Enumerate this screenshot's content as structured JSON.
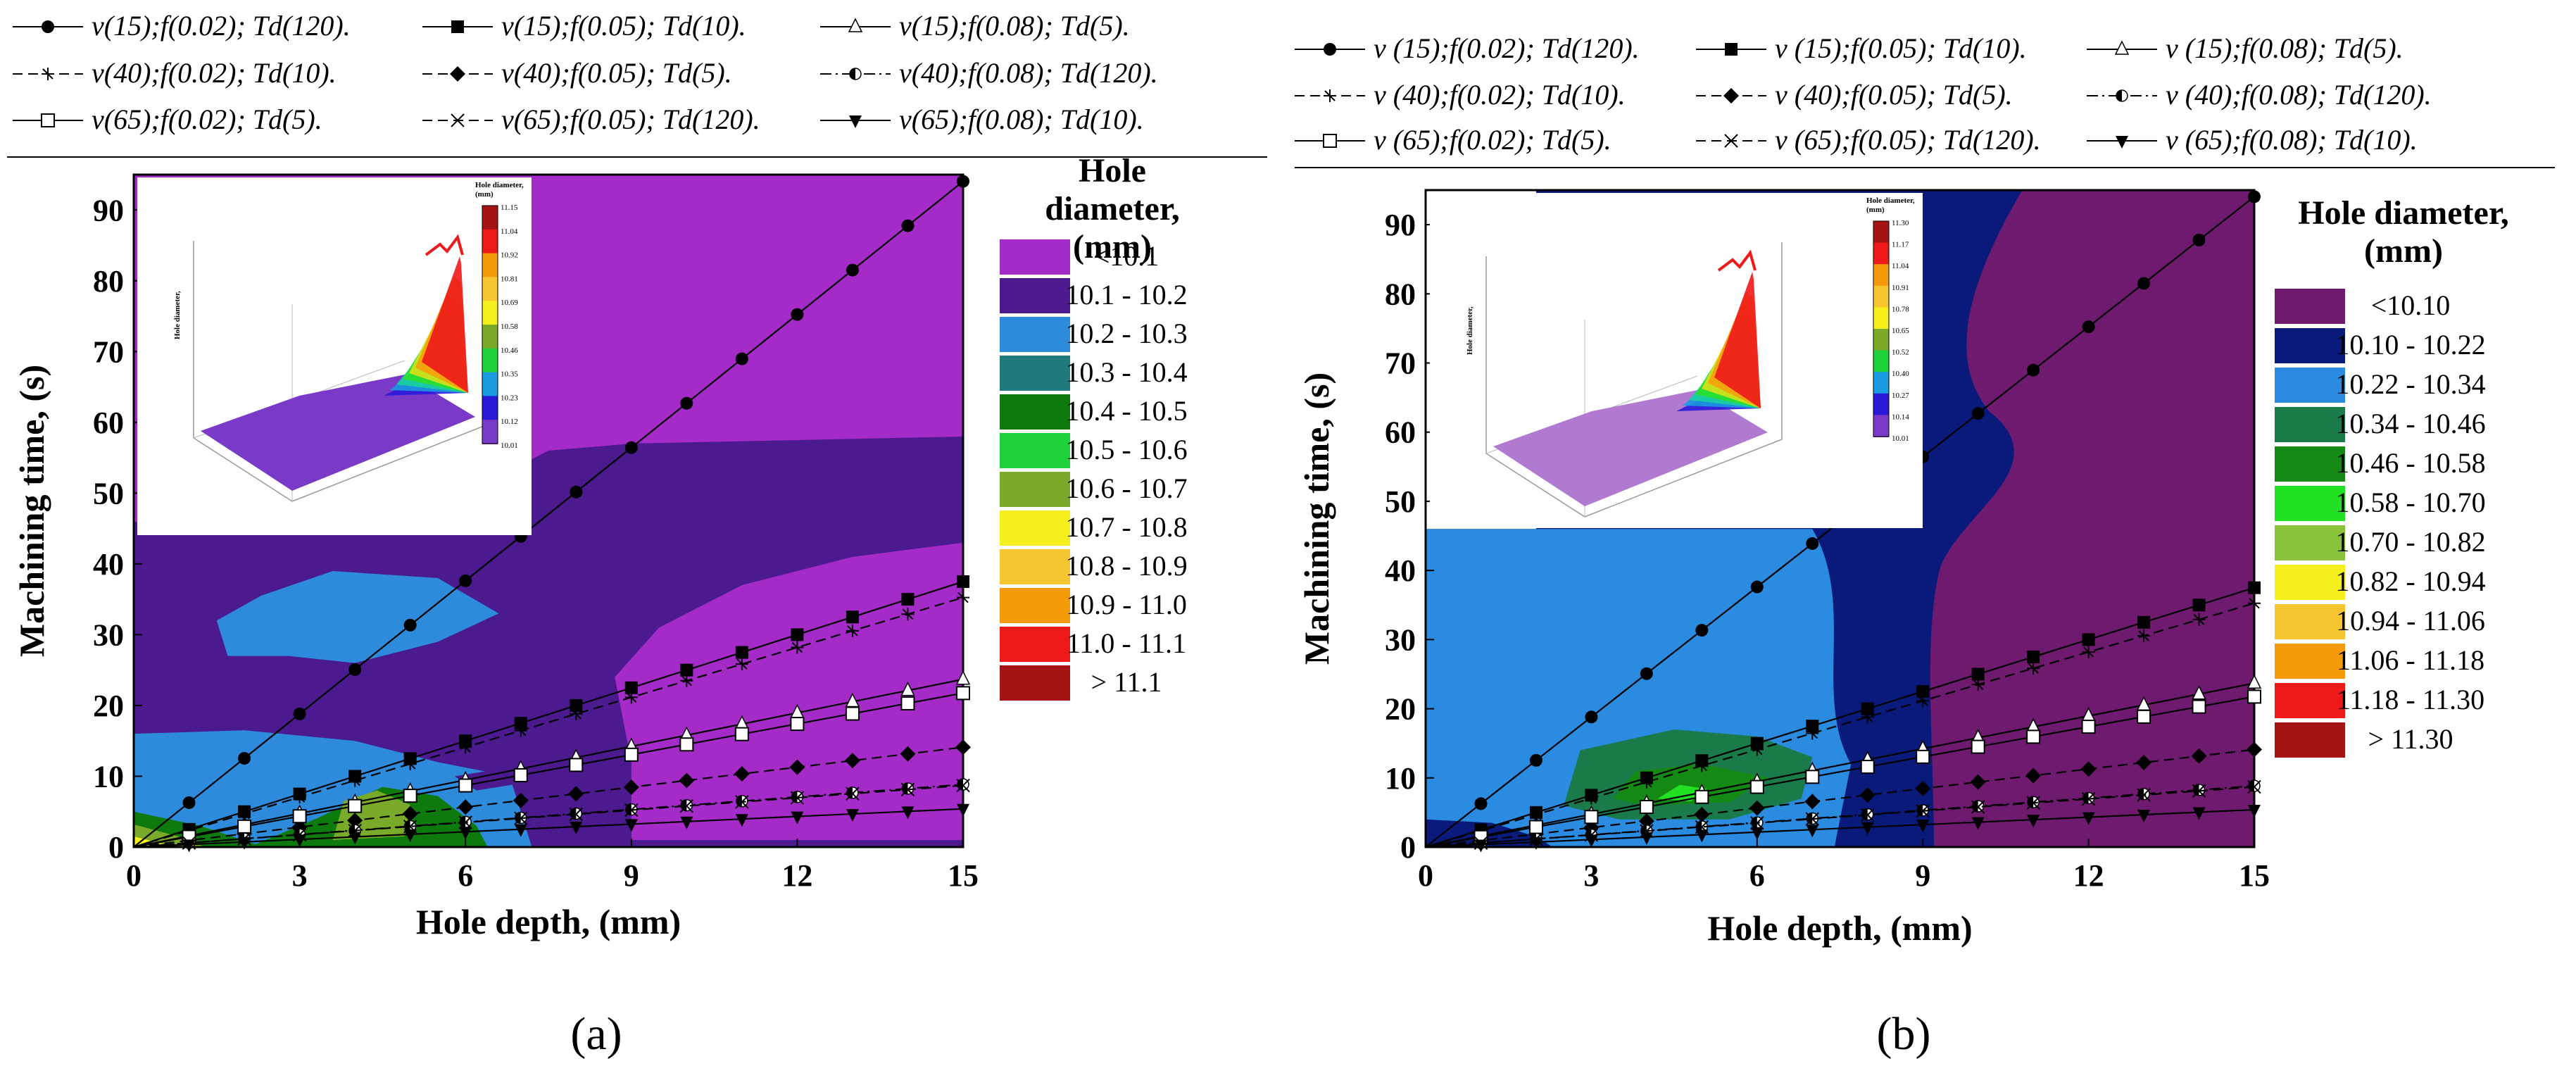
{
  "series": [
    {
      "label": "v(15);f(0.02); Td(120).",
      "label_b": "v (15);f(0.02); Td(120).",
      "marker": "circle",
      "dash": "solid",
      "slope_a": 6.27,
      "slope_b": 6.27
    },
    {
      "label": "v(15);f(0.05); Td(10).",
      "label_b": "v (15);f(0.05); Td(10).",
      "marker": "square",
      "dash": "solid",
      "slope_a": 2.5,
      "slope_b": 2.5
    },
    {
      "label": "v(15);f(0.08); Td(5).",
      "label_b": "v (15);f(0.08); Td(5).",
      "marker": "triangle",
      "dash": "solid",
      "slope_a": 1.58,
      "slope_b": 1.58
    },
    {
      "label": "v(40);f(0.02); Td(10).",
      "label_b": "v (40);f(0.02); Td(10).",
      "marker": "star",
      "dash": "dash",
      "slope_a": 2.35,
      "slope_b": 2.35
    },
    {
      "label": "v(40);f(0.05); Td(5).",
      "label_b": "v (40);f(0.05); Td(5).",
      "marker": "diamond",
      "dash": "dash",
      "slope_a": 0.94,
      "slope_b": 0.94
    },
    {
      "label": "v(40);f(0.08); Td(120).",
      "label_b": "v (40);f(0.08); Td(120).",
      "marker": "halfcircle",
      "dash": "dashdot",
      "slope_a": 0.59,
      "slope_b": 0.59
    },
    {
      "label": "v(65);f(0.02); Td(5).",
      "label_b": "v (65);f(0.02); Td(5).",
      "marker": "opensquare",
      "dash": "solid",
      "slope_a": 1.45,
      "slope_b": 1.45
    },
    {
      "label": "v(65);f(0.05); Td(120).",
      "label_b": "v (65);f(0.05); Td(120).",
      "marker": "cross",
      "dash": "dash",
      "slope_a": 0.58,
      "slope_b": 0.58
    },
    {
      "label": "v(65);f(0.08); Td(10).",
      "label_b": "v (65);f(0.08); Td(10).",
      "marker": "invtriangle",
      "dash": "solid",
      "slope_a": 0.36,
      "slope_b": 0.36
    }
  ],
  "chart_data": [
    {
      "id": "a",
      "type": "contour",
      "panel_label": "(a)",
      "xlabel": "Hole depth, (mm)",
      "ylabel": "Machining time, (s)",
      "xlim": [
        0,
        15
      ],
      "ylim": [
        0,
        95
      ],
      "xticks": [
        0,
        3,
        6,
        9,
        12,
        15
      ],
      "yticks": [
        0,
        10,
        20,
        30,
        40,
        50,
        60,
        70,
        80,
        90
      ],
      "x_points": [
        0,
        1,
        2,
        3,
        4,
        5,
        6,
        7,
        8,
        9,
        10,
        11,
        12,
        13,
        14,
        15
      ],
      "colorbar_title": [
        "Hole",
        "diameter,",
        "(mm)"
      ],
      "colorbar": [
        {
          "label": "<10.1",
          "color": "#a52bc8"
        },
        {
          "label": "10.1 - 10.2",
          "color": "#4b1a8e"
        },
        {
          "label": "10.2 - 10.3",
          "color": "#2e8bdc"
        },
        {
          "label": "10.3 - 10.4",
          "color": "#1f7a7a"
        },
        {
          "label": "10.4 - 10.5",
          "color": "#0e7a0e"
        },
        {
          "label": "10.5 - 10.6",
          "color": "#1fd23a"
        },
        {
          "label": "10.6 - 10.7",
          "color": "#7aaa2a"
        },
        {
          "label": "10.7 - 10.8",
          "color": "#f5ef1e"
        },
        {
          "label": "10.8 - 10.9",
          "color": "#f7c530"
        },
        {
          "label": "10.9 - 11.0",
          "color": "#f59a0a"
        },
        {
          "label": "11.0 - 11.1",
          "color": "#ee1a1a"
        },
        {
          "label": "> 11.1",
          "color": "#a51414"
        }
      ],
      "inset": {
        "title": [
          "Hole diameter,",
          "(mm)"
        ],
        "ticks": [
          "11.15",
          "11.04",
          "10.92",
          "10.81",
          "10.69",
          "10.58",
          "10.46",
          "10.35",
          "10.23",
          "10.12",
          "10.01"
        ]
      }
    },
    {
      "id": "b",
      "type": "contour",
      "panel_label": "(b)",
      "xlabel": "Hole depth, (mm)",
      "ylabel": "Machining time, (s)",
      "xlim": [
        0,
        15
      ],
      "ylim": [
        0,
        95
      ],
      "xticks": [
        0,
        3,
        6,
        9,
        12,
        15
      ],
      "yticks": [
        0,
        10,
        20,
        30,
        40,
        50,
        60,
        70,
        80,
        90
      ],
      "x_points": [
        0,
        1,
        2,
        3,
        4,
        5,
        6,
        7,
        8,
        9,
        10,
        11,
        12,
        13,
        14,
        15
      ],
      "colorbar_title": [
        "Hole diameter,",
        "(mm)"
      ],
      "colorbar": [
        {
          "label": "<10.10",
          "color": "#6e1a6e"
        },
        {
          "label": "10.10 - 10.22",
          "color": "#0a1a7a"
        },
        {
          "label": "10.22 - 10.34",
          "color": "#2a8be0"
        },
        {
          "label": "10.34 - 10.46",
          "color": "#1a7a4a"
        },
        {
          "label": "10.46 - 10.58",
          "color": "#148a14"
        },
        {
          "label": "10.58 - 10.70",
          "color": "#22e022"
        },
        {
          "label": "10.70 - 10.82",
          "color": "#8ac23a"
        },
        {
          "label": "10.82 - 10.94",
          "color": "#f5ef1e"
        },
        {
          "label": "10.94 - 11.06",
          "color": "#f7c530"
        },
        {
          "label": "11.06 - 11.18",
          "color": "#f59a0a"
        },
        {
          "label": "11.18 - 11.30",
          "color": "#ee1a1a"
        },
        {
          "label": "> 11.30",
          "color": "#a51414"
        }
      ],
      "inset": {
        "title": [
          "Hole diameter,",
          "(mm)"
        ],
        "ticks": [
          "11.30",
          "11.17",
          "11.04",
          "10.91",
          "10.78",
          "10.65",
          "10.52",
          "10.40",
          "10.27",
          "10.14",
          "10.01"
        ]
      }
    }
  ]
}
